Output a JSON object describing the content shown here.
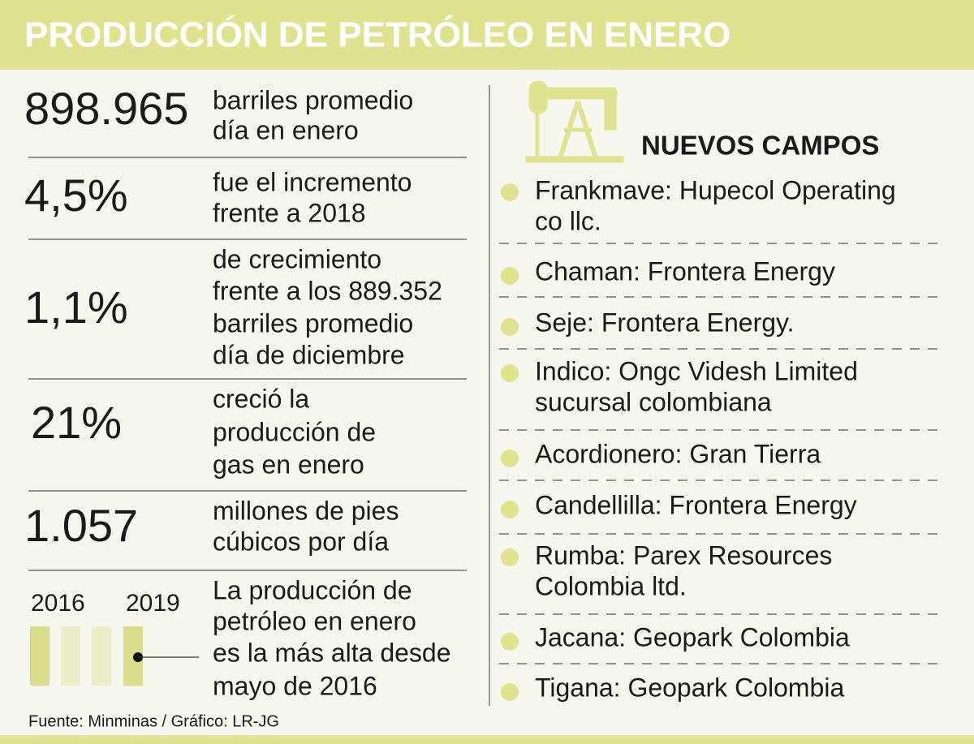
{
  "header": {
    "title": "PRODUCCIÓN DE PETRÓLEO EN ENERO"
  },
  "stats": [
    {
      "value": "898.965",
      "text": [
        "barriles promedio",
        "día en enero"
      ]
    },
    {
      "value": "4,5%",
      "text": [
        "fue el incremento",
        "frente a 2018"
      ]
    },
    {
      "value": "1,1%",
      "text": [
        "de crecimiento",
        "frente a los 889.352",
        "barriles promedio",
        "día de diciembre"
      ]
    },
    {
      "value": "21%",
      "text": [
        "creció la",
        "producción de",
        "gas en enero"
      ]
    },
    {
      "value": "1.057",
      "text": [
        "millones de pies",
        "cúbicos por día"
      ]
    }
  ],
  "timeline": {
    "start": "2016",
    "end": "2019",
    "text": [
      "La producción de",
      "petróleo en enero",
      "es la más alta desde",
      "mayo de 2016"
    ]
  },
  "source": "Fuente: Minminas / Gráfico: LR-JG",
  "fields": {
    "title": "NUEVOS CAMPOS",
    "items": [
      [
        "Frankmave: Hupecol Operating",
        "co llc."
      ],
      [
        "Chaman: Frontera Energy"
      ],
      [
        "Seje: Frontera Energy."
      ],
      [
        "Indico: Ongc Videsh Limited",
        "sucursal colombiana"
      ],
      [
        "Acordionero: Gran Tierra"
      ],
      [
        "Candellilla: Frontera Energy"
      ],
      [
        "Rumba: Parex Resources",
        "Colombia ltd."
      ],
      [
        "Jacana: Geopark Colombia"
      ],
      [
        "Tigana: Geopark Colombia"
      ]
    ]
  }
}
